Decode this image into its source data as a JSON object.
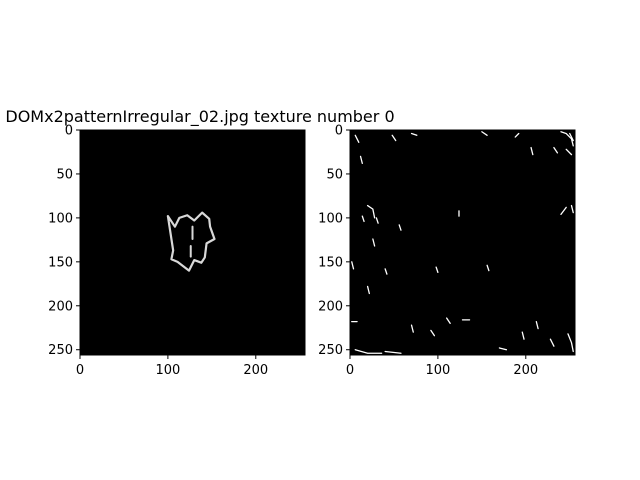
{
  "figure": {
    "title": "DOMx2patternIrregular_02.jpg texture number 0"
  },
  "panels": [
    {
      "name": "left",
      "background": "#000000",
      "line_color": "#d8d8d8",
      "x_ticks": [
        "0",
        "100",
        "200"
      ],
      "y_ticks": [
        "0",
        "50",
        "100",
        "150",
        "200",
        "250"
      ],
      "x_tick_values": [
        0,
        100,
        200
      ],
      "y_tick_values": [
        0,
        50,
        100,
        150,
        200,
        250
      ],
      "extent": [
        256,
        256
      ]
    },
    {
      "name": "right",
      "background": "#000000",
      "line_color": "#ffffff",
      "x_ticks": [
        "0",
        "100",
        "200"
      ],
      "y_ticks": [
        "0",
        "50",
        "100",
        "150",
        "200",
        "250"
      ],
      "x_tick_values": [
        0,
        100,
        200
      ],
      "y_tick_values": [
        0,
        50,
        100,
        150,
        200,
        250
      ],
      "extent": [
        256,
        256
      ]
    }
  ],
  "shape_outline": [
    [
      100,
      98
    ],
    [
      108,
      110
    ],
    [
      113,
      100
    ],
    [
      122,
      97
    ],
    [
      130,
      103
    ],
    [
      139,
      94
    ],
    [
      147,
      101
    ],
    [
      148,
      110
    ],
    [
      153,
      124
    ],
    [
      144,
      129
    ],
    [
      142,
      145
    ],
    [
      138,
      151
    ],
    [
      130,
      148
    ],
    [
      124,
      160
    ],
    [
      111,
      150
    ],
    [
      104,
      147
    ],
    [
      106,
      137
    ],
    [
      100,
      98
    ]
  ],
  "shape_inner_strokes": [
    [
      [
        128,
        110
      ],
      [
        128,
        124
      ]
    ],
    [
      [
        126,
        132
      ],
      [
        126,
        144
      ]
    ]
  ],
  "edge_marks": [
    [
      [
        240,
        2
      ],
      [
        246,
        4
      ],
      [
        252,
        10
      ],
      [
        254,
        18
      ]
    ],
    [
      [
        250,
        4
      ],
      [
        254,
        12
      ]
    ],
    [
      [
        232,
        20
      ],
      [
        236,
        26
      ]
    ],
    [
      [
        246,
        22
      ],
      [
        252,
        28
      ]
    ],
    [
      [
        6,
        6
      ],
      [
        10,
        14
      ]
    ],
    [
      [
        12,
        30
      ],
      [
        14,
        38
      ]
    ],
    [
      [
        20,
        86
      ],
      [
        26,
        90
      ],
      [
        28,
        100
      ]
    ],
    [
      [
        14,
        98
      ],
      [
        16,
        104
      ]
    ],
    [
      [
        240,
        96
      ],
      [
        246,
        88
      ]
    ],
    [
      [
        252,
        86
      ],
      [
        254,
        94
      ]
    ],
    [
      [
        124,
        92
      ],
      [
        124,
        98
      ]
    ],
    [
      [
        26,
        124
      ],
      [
        28,
        132
      ]
    ],
    [
      [
        2,
        150
      ],
      [
        4,
        158
      ]
    ],
    [
      [
        40,
        158
      ],
      [
        42,
        164
      ]
    ],
    [
      [
        156,
        154
      ],
      [
        158,
        160
      ]
    ],
    [
      [
        98,
        156
      ],
      [
        100,
        162
      ]
    ],
    [
      [
        20,
        178
      ],
      [
        22,
        186
      ]
    ],
    [
      [
        2,
        218
      ],
      [
        8,
        218
      ]
    ],
    [
      [
        110,
        214
      ],
      [
        114,
        220
      ]
    ],
    [
      [
        128,
        216
      ],
      [
        136,
        216
      ]
    ],
    [
      [
        70,
        222
      ],
      [
        72,
        230
      ]
    ],
    [
      [
        92,
        228
      ],
      [
        96,
        234
      ]
    ],
    [
      [
        6,
        250
      ],
      [
        20,
        254
      ],
      [
        36,
        254
      ]
    ],
    [
      [
        40,
        252
      ],
      [
        58,
        254
      ]
    ],
    [
      [
        228,
        238
      ],
      [
        232,
        246
      ]
    ],
    [
      [
        248,
        232
      ],
      [
        252,
        242
      ],
      [
        254,
        252
      ]
    ],
    [
      [
        170,
        248
      ],
      [
        178,
        250
      ]
    ],
    [
      [
        48,
        6
      ],
      [
        52,
        12
      ]
    ],
    [
      [
        70,
        4
      ],
      [
        76,
        6
      ]
    ],
    [
      [
        150,
        2
      ],
      [
        156,
        6
      ]
    ],
    [
      [
        188,
        8
      ],
      [
        192,
        4
      ]
    ],
    [
      [
        206,
        20
      ],
      [
        208,
        28
      ]
    ],
    [
      [
        196,
        230
      ],
      [
        198,
        238
      ]
    ],
    [
      [
        212,
        218
      ],
      [
        214,
        226
      ]
    ],
    [
      [
        56,
        108
      ],
      [
        58,
        114
      ]
    ],
    [
      [
        30,
        100
      ],
      [
        32,
        106
      ]
    ]
  ]
}
